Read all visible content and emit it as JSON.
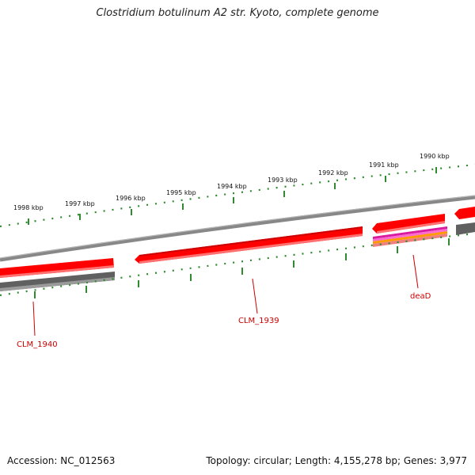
{
  "title": "Clostridium botulinum A2 str. Kyoto, complete genome",
  "footer": {
    "accession": "Accession: NC_012563",
    "summary": "Topology: circular; Length: 4,155,278 bp; Genes: 3,977"
  },
  "colors": {
    "tick": "#2e8b2e",
    "gene_label": "#cc0000",
    "gene": "#ff0000",
    "backbone": "#888888",
    "reverse_gene": "#606060"
  },
  "ticks": [
    {
      "label": "1998 kbp"
    },
    {
      "label": "1997 kbp"
    },
    {
      "label": "1996 kbp"
    },
    {
      "label": "1995 kbp"
    },
    {
      "label": "1994 kbp"
    },
    {
      "label": "1993 kbp"
    },
    {
      "label": "1992 kbp"
    },
    {
      "label": "1991 kbp"
    },
    {
      "label": "1990 kbp"
    }
  ],
  "genes": [
    {
      "label": "CLM_1940"
    },
    {
      "label": "CLM_1939"
    },
    {
      "label": "deaD"
    }
  ]
}
